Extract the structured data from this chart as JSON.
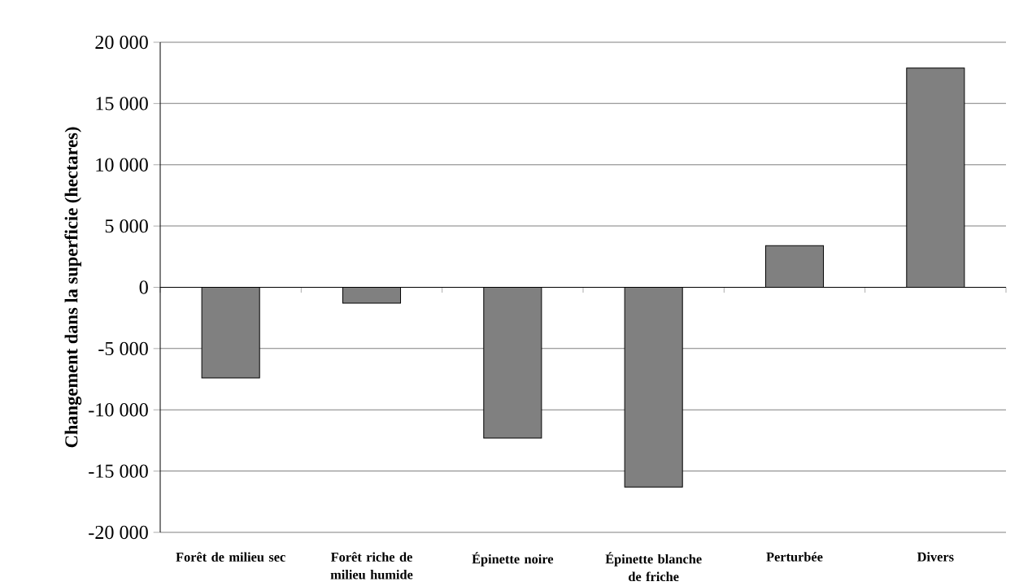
{
  "chart_data": {
    "type": "bar",
    "ylabel": "Changement dans la superficie (hectares)",
    "categories": [
      "Forêt de milieu sec",
      "Forêt riche de milieu humide",
      "Épinette noire",
      "Épinette blanche de friche",
      "Perturbée",
      "Divers"
    ],
    "values": [
      -7400,
      -1300,
      -12300,
      -16300,
      3400,
      17900
    ],
    "color": "#808080",
    "ylim": [
      -20000,
      20000
    ],
    "yticks": [
      {
        "value": -20000,
        "label": "-20 000"
      },
      {
        "value": -15000,
        "label": "-15 000"
      },
      {
        "value": -10000,
        "label": "-10 000"
      },
      {
        "value": -5000,
        "label": "-5 000"
      },
      {
        "value": 0,
        "label": "0"
      },
      {
        "value": 5000,
        "label": "5 000"
      },
      {
        "value": 10000,
        "label": "10 000"
      },
      {
        "value": 15000,
        "label": "15 000"
      },
      {
        "value": 20000,
        "label": "20 000"
      }
    ],
    "grid": "y"
  }
}
